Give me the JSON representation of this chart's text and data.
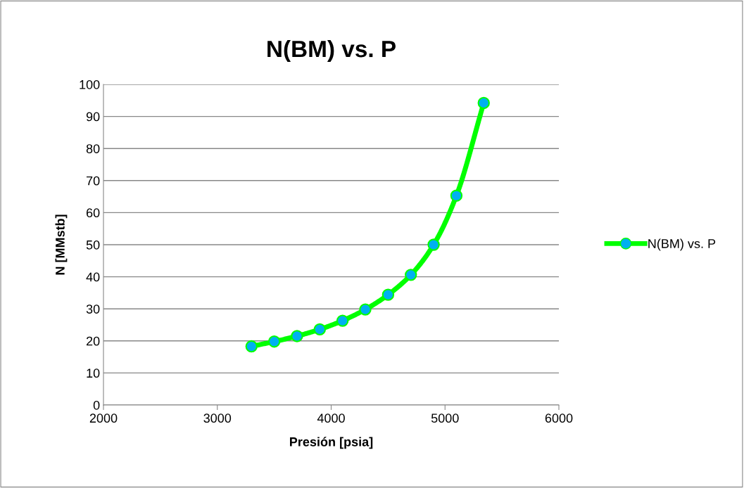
{
  "chart_data": {
    "type": "line",
    "title": "N(BM) vs. P",
    "xlabel": "Presión [psia]",
    "ylabel": "N [MMstb]",
    "x": [
      3300,
      3500,
      3700,
      3900,
      4100,
      4300,
      4500,
      4700,
      4900,
      5100,
      5340
    ],
    "series": [
      {
        "name": "N(BM) vs. P",
        "color": "#00ff00",
        "colors": [
          "#00b0f0",
          "#00b0f0",
          "#00b0f0",
          "#00b0f0",
          "#00b0f0",
          "#00b0f0",
          "#00b0f0",
          "#00b0f0",
          "#00b0f0",
          "#00b0f0",
          "#00b0f0"
        ],
        "values": [
          18.3,
          19.8,
          21.5,
          23.6,
          26.3,
          29.8,
          34.4,
          40.6,
          50.0,
          65.3,
          94.2
        ]
      }
    ],
    "xlim": [
      2000,
      6000
    ],
    "xticks": [
      2000,
      3000,
      4000,
      5000,
      6000
    ],
    "ylim": [
      0,
      100
    ],
    "yticks": [
      0,
      10,
      20,
      30,
      40,
      50,
      60,
      70,
      80,
      90,
      100
    ],
    "grid": "y",
    "legend": "right",
    "marker": "circle",
    "line_style": "solid"
  }
}
